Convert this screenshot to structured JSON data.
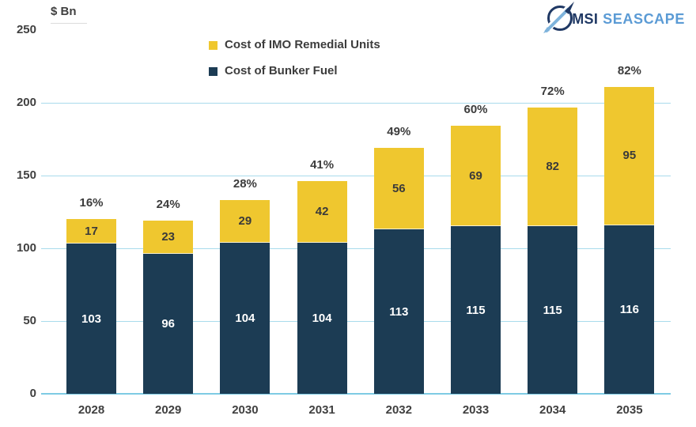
{
  "brand": {
    "msi": "MSI",
    "seascape": "SEASCAPE"
  },
  "legend": {
    "items": [
      {
        "label": "Cost of IMO Remedial Units",
        "color": "#EFC72F"
      },
      {
        "label": "Cost of Bunker Fuel",
        "color": "#1C3C54"
      }
    ]
  },
  "colors": {
    "bunker_navy": "#1C3C54",
    "remedial_yellow": "#EFC72F",
    "gridline_blue": "#A9DBEC",
    "axis_blue": "#7ECBE4",
    "text_gray": "#404040",
    "logo_navy": "#1F3864",
    "logo_blue": "#5B9BD5"
  },
  "chart_data": {
    "type": "bar",
    "stacked": true,
    "title": "",
    "ylabel": "$ Bn",
    "xlabel": "",
    "ylim": [
      0,
      250
    ],
    "yticks": [
      0,
      50,
      100,
      150,
      200,
      250
    ],
    "grid": true,
    "legend_position": "top-center",
    "categories": [
      "2028",
      "2029",
      "2030",
      "2031",
      "2032",
      "2033",
      "2034",
      "2035"
    ],
    "series": [
      {
        "name": "Cost of Bunker Fuel",
        "color": "#1C3C54",
        "label_color": "#FFFFFF",
        "values": [
          103,
          96,
          104,
          104,
          113,
          115,
          115,
          116
        ]
      },
      {
        "name": "Cost of IMO Remedial Units",
        "color": "#EFC72F",
        "label_color": "#3A3A3A",
        "values": [
          17,
          23,
          29,
          42,
          56,
          69,
          82,
          95
        ]
      }
    ],
    "total_pct_labels": [
      "16%",
      "24%",
      "28%",
      "41%",
      "49%",
      "60%",
      "72%",
      "82%"
    ]
  }
}
